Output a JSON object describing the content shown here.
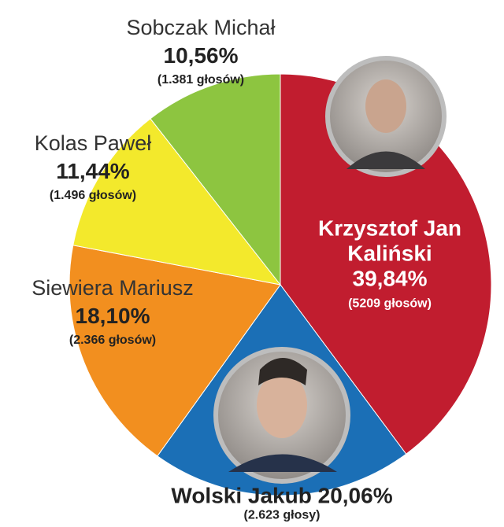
{
  "chart_data": {
    "type": "pie",
    "categories": [
      "Krzysztof Jan Kaliński",
      "Wolski Jakub",
      "Siewiera Mariusz",
      "Kolas Paweł",
      "Sobczak Michał"
    ],
    "values": [
      39.84,
      20.06,
      18.1,
      11.44,
      10.56
    ],
    "value_labels": [
      "39,84%",
      "20,06%",
      "18,10%",
      "11,44%",
      "10,56%"
    ],
    "votes": [
      "(5209 głosów)",
      "(2.623 głosy)",
      "(2.366 głosów)",
      "(1.496 głosów)",
      "(1.381 głosów)"
    ],
    "colors": [
      "#c11d2f",
      "#1b6fb6",
      "#f28f1f",
      "#f3e92c",
      "#8dc540"
    ]
  }
}
